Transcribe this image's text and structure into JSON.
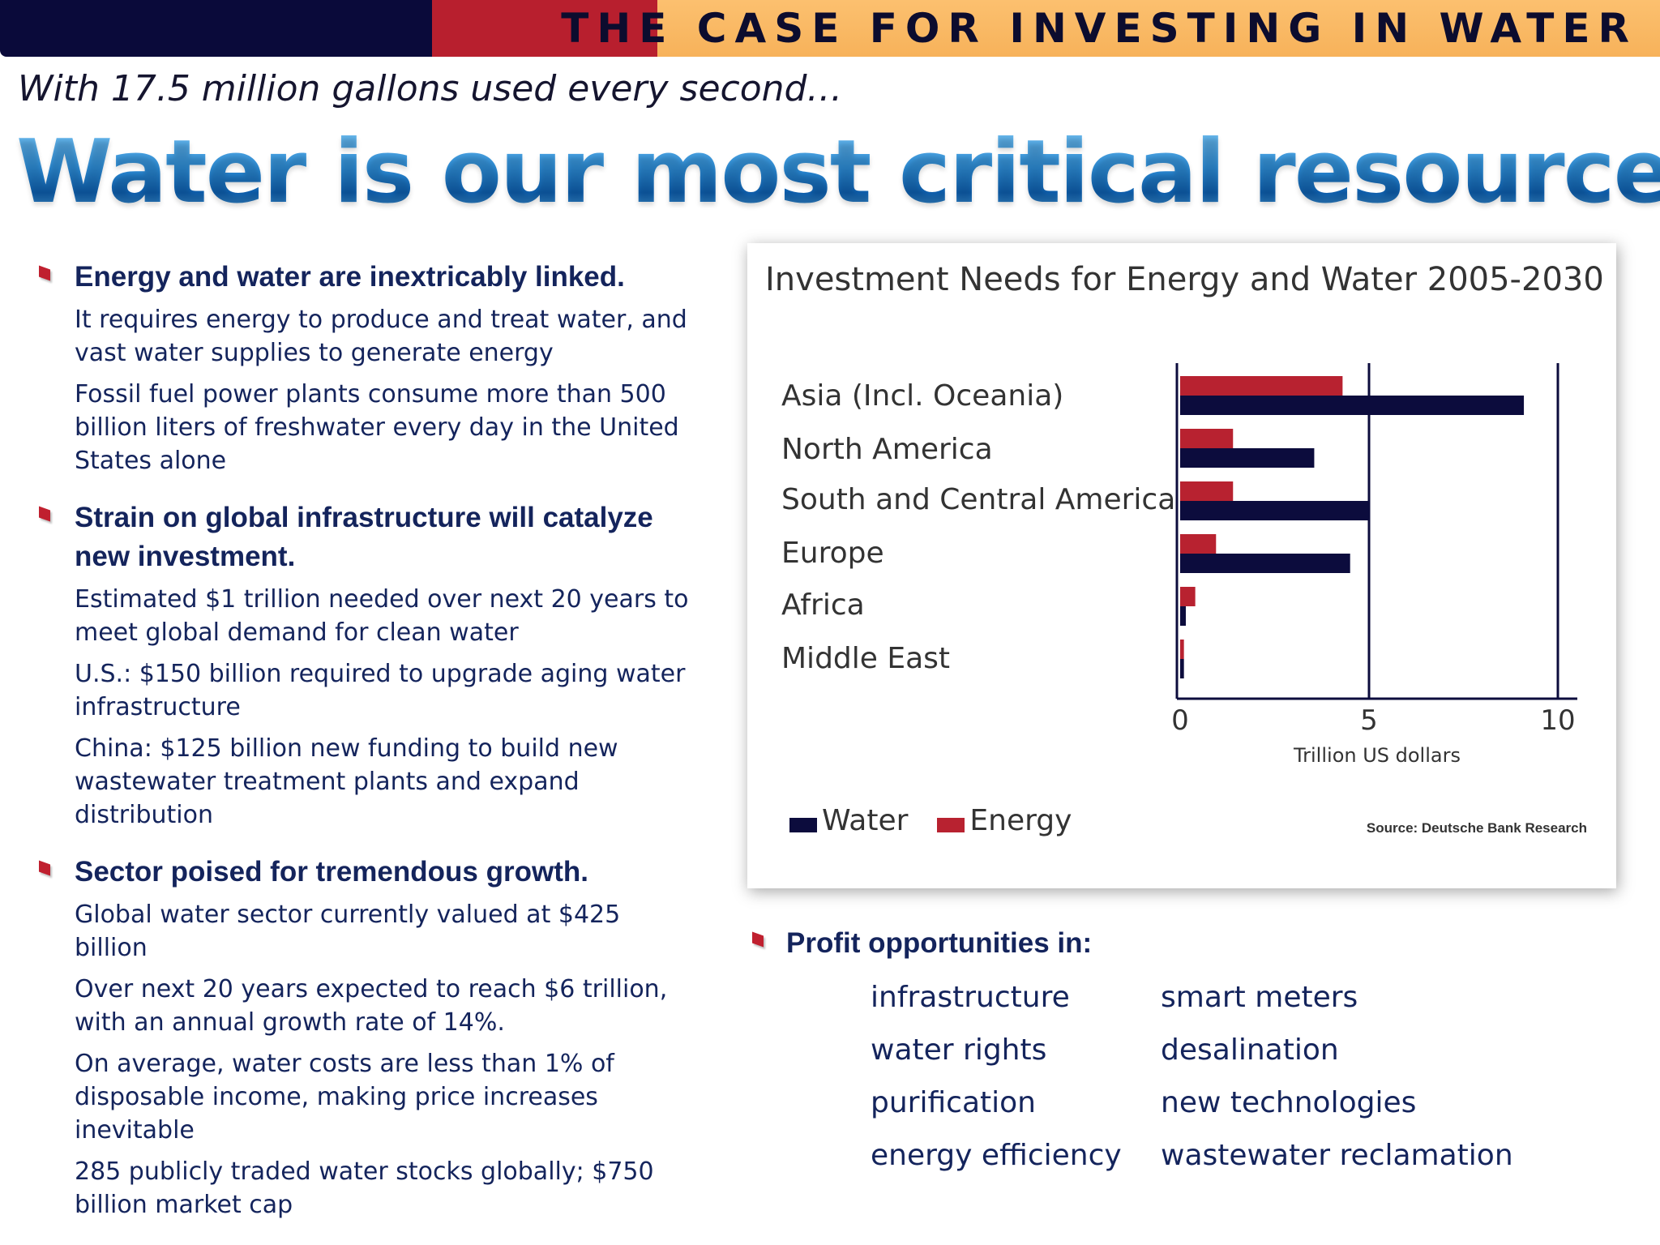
{
  "banner": {
    "title": "THE CASE FOR INVESTING IN WATER",
    "colors": {
      "navy": "#0a0a3a",
      "red": "#b81f2e",
      "orange": "#f9b865"
    }
  },
  "subtitle": "With 17.5 million gallons used every second…",
  "headline": "Water is our most critical resource.",
  "sections": [
    {
      "heading": "Energy and water are inextricably linked.",
      "points": [
        "It requires energy to produce and treat water, and vast water supplies to generate energy",
        "Fossil fuel power plants consume more than 500 billion liters of freshwater every day in the United States alone"
      ]
    },
    {
      "heading": "Strain on global infrastructure will catalyze new investment.",
      "points": [
        "Estimated $1 trillion needed over next 20 years to meet global demand for clean water",
        "U.S.:  $150 billion required to upgrade aging water infrastructure",
        "China:  $125 billion new funding to build new wastewater treatment plants and expand distribution"
      ]
    },
    {
      "heading": "Sector poised for tremendous growth.",
      "points": [
        "Global water sector currently valued at $425 billion",
        "Over next 20 years expected to reach $6 trillion, with an annual growth rate of 14%.",
        "On average, water costs are less than 1% of disposable income, making price increases inevitable",
        "285 publicly traded water stocks globally;  $750 billion market cap"
      ]
    }
  ],
  "chart_data": {
    "type": "bar",
    "orientation": "horizontal",
    "title": "Investment Needs for Energy and Water 2005-2030",
    "categories": [
      "Asia (Incl. Oceania)",
      "North America",
      "South and Central America",
      "Europe",
      "Africa",
      "Middle East"
    ],
    "series": [
      {
        "name": "Energy",
        "color": "#b82230",
        "values": [
          4.3,
          1.4,
          1.4,
          0.95,
          0.4,
          0.1
        ]
      },
      {
        "name": "Water",
        "color": "#0c0c3d",
        "values": [
          9.1,
          3.55,
          5.0,
          4.5,
          0.15,
          0.1
        ]
      }
    ],
    "xlabel": "Trillion US dollars",
    "xlim": [
      0,
      10
    ],
    "xticks": [
      0,
      5,
      10
    ],
    "xtick_labels": [
      "0",
      "5",
      "10"
    ],
    "gridlines": [
      5,
      10
    ],
    "legend": [
      {
        "name": "Water",
        "color": "#0c0c3d"
      },
      {
        "name": "Energy",
        "color": "#b82230"
      }
    ],
    "legend_position": "bottom-left",
    "source": "Source: Deutsche Bank Research"
  },
  "profit": {
    "heading": "Profit opportunities in:",
    "items": [
      "infrastructure",
      "smart meters",
      "water rights",
      "desalination",
      "purification",
      "new technologies",
      "energy efficiency",
      "wastewater reclamation"
    ]
  }
}
